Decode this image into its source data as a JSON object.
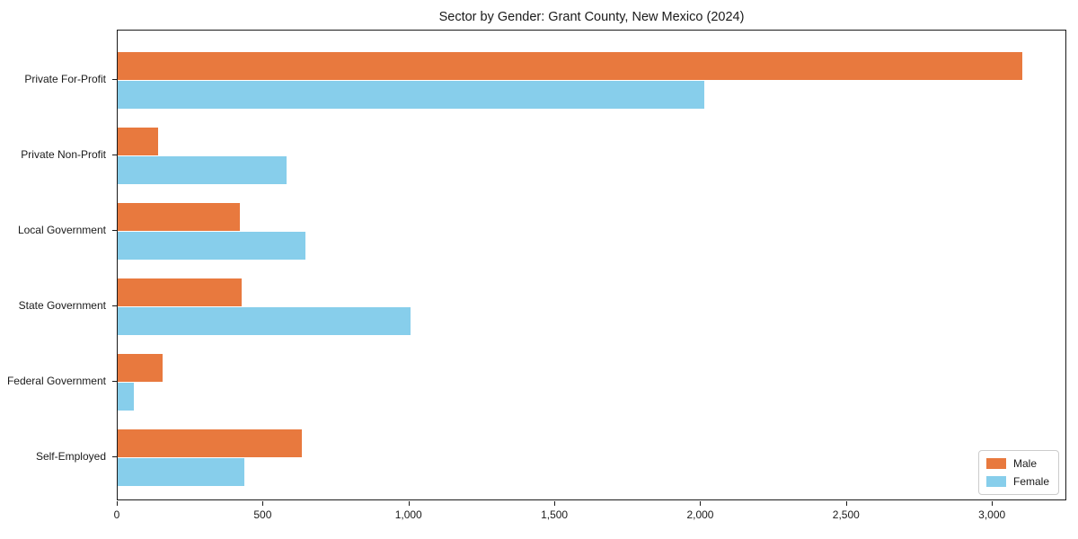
{
  "chart_data": {
    "type": "bar",
    "orientation": "horizontal",
    "title": "Sector by Gender: Grant County, New Mexico (2024)",
    "categories": [
      "Private For-Profit",
      "Private Non-Profit",
      "Local Government",
      "State Government",
      "Federal Government",
      "Self-Employed"
    ],
    "series": [
      {
        "name": "Male",
        "color": "#E8793E",
        "values": [
          3100,
          140,
          420,
          425,
          155,
          630
        ]
      },
      {
        "name": "Female",
        "color": "#87CEEB",
        "values": [
          2010,
          580,
          645,
          1005,
          55,
          435
        ]
      }
    ],
    "xlabel": "",
    "ylabel": "",
    "xlim": [
      0,
      3255
    ],
    "x_ticks": [
      0,
      500,
      1000,
      1500,
      2000,
      2500,
      3000
    ],
    "x_tick_labels": [
      "0",
      "500",
      "1,000",
      "1,500",
      "2,000",
      "2,500",
      "3,000"
    ],
    "grid": false,
    "legend_position": "lower right"
  }
}
